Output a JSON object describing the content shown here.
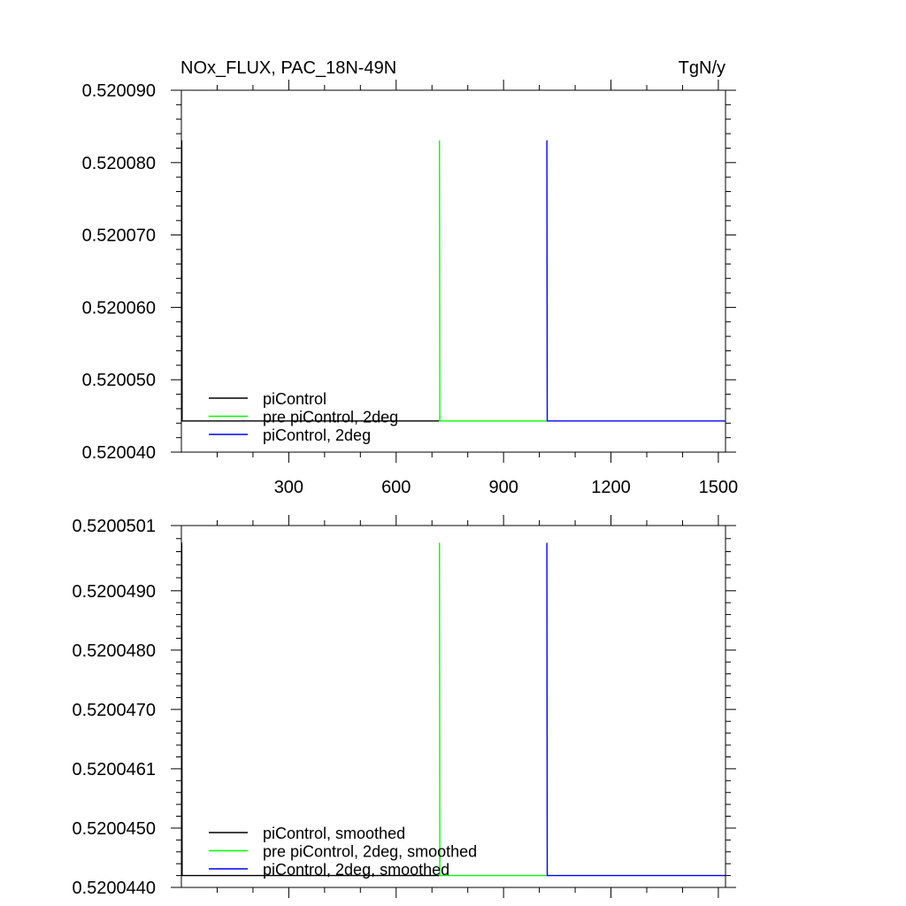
{
  "chart_data": [
    {
      "type": "line",
      "title": "NOx_FLUX, PAC_18N-49N",
      "units": "TgN/y",
      "xlim": [
        0,
        1520
      ],
      "ylim": [
        0.52004,
        0.52009
      ],
      "x_ticks": [
        300,
        600,
        900,
        1200,
        1500
      ],
      "x_tick_labels": [
        "300",
        "600",
        "900",
        "1200",
        "1500"
      ],
      "y_ticks": [
        0.52004,
        0.52005,
        0.52006,
        0.52007,
        0.52008,
        0.52009
      ],
      "y_tick_labels": [
        "0.520040",
        "0.520050",
        "0.520060",
        "0.520070",
        "0.520080",
        "0.520090"
      ],
      "legend_position": "bottom-left",
      "series": [
        {
          "name": "piControl",
          "color": "#000000",
          "x": [
            0,
            1,
            2,
            720
          ],
          "y": [
            0.520083,
            0.520083,
            0.5200443,
            0.5200443
          ]
        },
        {
          "name": "pre piControl, 2deg",
          "color": "#00ff00",
          "x": [
            720,
            721,
            722,
            1020
          ],
          "y": [
            0.520083,
            0.520083,
            0.5200443,
            0.5200443
          ]
        },
        {
          "name": "piControl, 2deg",
          "color": "#0000ff",
          "x": [
            1020,
            1021,
            1022,
            1520
          ],
          "y": [
            0.520083,
            0.520083,
            0.5200443,
            0.5200443
          ]
        }
      ]
    },
    {
      "type": "line",
      "xlim": [
        0,
        1520
      ],
      "ylim": [
        0.520044,
        0.5200501
      ],
      "x_ticks": [
        300,
        600,
        900,
        1200,
        1500
      ],
      "y_ticks": [
        0.520044,
        0.520045,
        0.520046,
        0.520047,
        0.520048,
        0.520049,
        0.5200501
      ],
      "y_tick_labels": [
        "0.5200440",
        "0.5200450",
        "0.5200461",
        "0.5200470",
        "0.5200480",
        "0.5200490",
        "0.5200501"
      ],
      "legend_position": "bottom-left",
      "series": [
        {
          "name": "piControl, smoothed",
          "color": "#000000",
          "x": [
            0,
            1,
            2,
            720
          ],
          "y": [
            0.5200498,
            0.5200498,
            0.5200442,
            0.5200442
          ]
        },
        {
          "name": "pre piControl, 2deg, smoothed",
          "color": "#00ff00",
          "x": [
            720,
            721,
            722,
            1020
          ],
          "y": [
            0.5200498,
            0.5200498,
            0.5200442,
            0.5200442
          ]
        },
        {
          "name": "piControl, 2deg, smoothed",
          "color": "#0000ff",
          "x": [
            1020,
            1021,
            1022,
            1520
          ],
          "y": [
            0.5200498,
            0.5200498,
            0.5200442,
            0.5200442
          ]
        }
      ]
    }
  ]
}
